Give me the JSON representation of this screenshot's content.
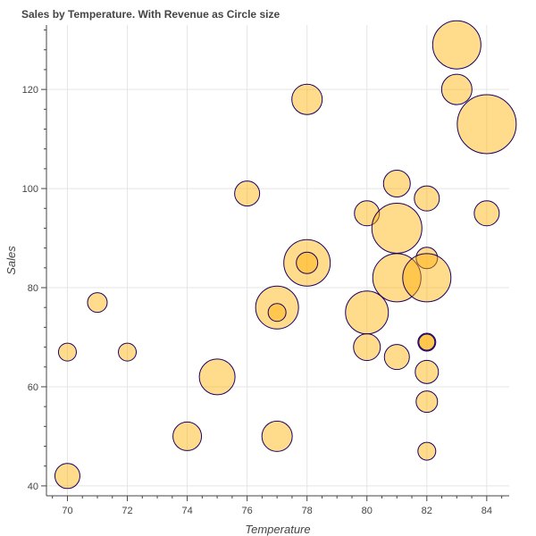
{
  "chart_data": {
    "type": "scatter",
    "title": "Sales by Temperature. With Revenue as Circle size",
    "xlabel": "Temperature",
    "ylabel": "Sales",
    "xlim": [
      69.3,
      84.75
    ],
    "ylim": [
      38,
      133
    ],
    "xticks": [
      70,
      72,
      74,
      76,
      78,
      80,
      82,
      84
    ],
    "yticks": [
      40,
      60,
      80,
      100,
      120
    ],
    "grid": true,
    "legend": "none",
    "colors": {
      "fill": "#ffb000",
      "fill_opacity": 0.45,
      "stroke": "#1a0066",
      "grid": "#e5e5e5",
      "axis": "#444444"
    },
    "points": [
      {
        "x": 70,
        "y": 42,
        "r": 14
      },
      {
        "x": 70,
        "y": 67,
        "r": 10
      },
      {
        "x": 71,
        "y": 77,
        "r": 11
      },
      {
        "x": 72,
        "y": 67,
        "r": 10
      },
      {
        "x": 74,
        "y": 50,
        "r": 16
      },
      {
        "x": 75,
        "y": 62,
        "r": 20
      },
      {
        "x": 76,
        "y": 99,
        "r": 14
      },
      {
        "x": 77,
        "y": 50,
        "r": 17
      },
      {
        "x": 77,
        "y": 76,
        "r": 24
      },
      {
        "x": 77,
        "y": 75,
        "r": 10
      },
      {
        "x": 78,
        "y": 118,
        "r": 17
      },
      {
        "x": 78,
        "y": 85,
        "r": 26
      },
      {
        "x": 78,
        "y": 85,
        "r": 12
      },
      {
        "x": 80,
        "y": 75,
        "r": 24
      },
      {
        "x": 80,
        "y": 68,
        "r": 15
      },
      {
        "x": 80,
        "y": 95,
        "r": 14
      },
      {
        "x": 81,
        "y": 101,
        "r": 15
      },
      {
        "x": 81,
        "y": 92,
        "r": 28
      },
      {
        "x": 81,
        "y": 82,
        "r": 27
      },
      {
        "x": 81,
        "y": 66,
        "r": 14
      },
      {
        "x": 82,
        "y": 98,
        "r": 14
      },
      {
        "x": 82,
        "y": 86,
        "r": 12
      },
      {
        "x": 82,
        "y": 82,
        "r": 27
      },
      {
        "x": 82,
        "y": 69,
        "r": 10
      },
      {
        "x": 82,
        "y": 69,
        "r": 9
      },
      {
        "x": 82,
        "y": 63,
        "r": 13
      },
      {
        "x": 82,
        "y": 57,
        "r": 12
      },
      {
        "x": 82,
        "y": 47,
        "r": 10
      },
      {
        "x": 83,
        "y": 129,
        "r": 27
      },
      {
        "x": 83,
        "y": 120,
        "r": 17
      },
      {
        "x": 84,
        "y": 113,
        "r": 33
      },
      {
        "x": 84,
        "y": 95,
        "r": 14
      }
    ]
  }
}
